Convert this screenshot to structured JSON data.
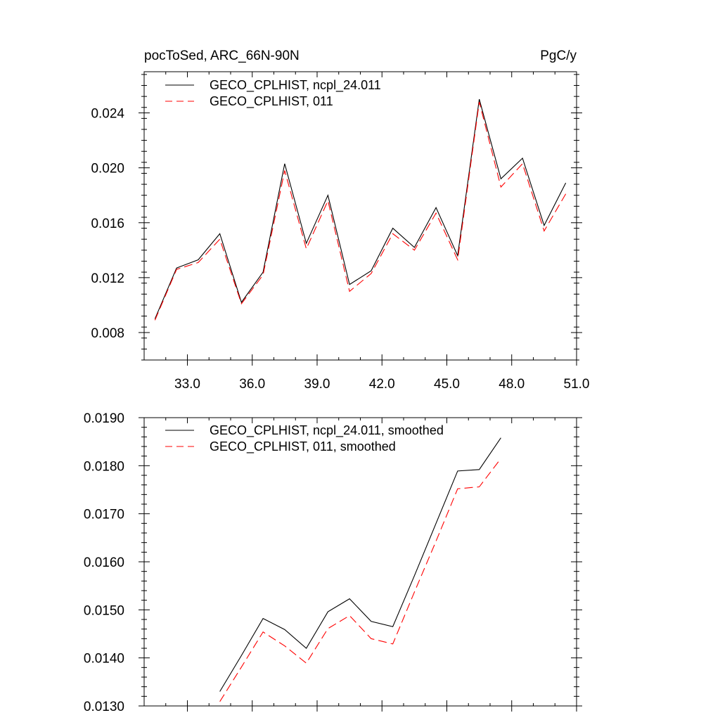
{
  "chart_data": [
    {
      "type": "line",
      "title_left": "pocToSed, ARC_66N-90N",
      "title_right": "PgC/y",
      "xlim": [
        31,
        51
      ],
      "ylim": [
        0.006,
        0.027
      ],
      "xticks": [
        33.0,
        36.0,
        39.0,
        42.0,
        45.0,
        48.0,
        51.0
      ],
      "xtick_labels": [
        "33.0",
        "36.0",
        "39.0",
        "42.0",
        "45.0",
        "48.0",
        "51.0"
      ],
      "yticks": [
        0.008,
        0.012,
        0.016,
        0.02,
        0.024
      ],
      "ytick_labels": [
        "0.008",
        "0.012",
        "0.016",
        "0.020",
        "0.024"
      ],
      "legend_position": "top-left",
      "grid": false,
      "x": [
        31.5,
        32.5,
        33.5,
        34.5,
        35.5,
        36.5,
        37.5,
        38.5,
        39.5,
        40.5,
        41.5,
        42.5,
        43.5,
        44.5,
        45.5,
        46.5,
        47.5,
        48.5,
        49.5,
        50.5
      ],
      "series": [
        {
          "name": "GECO_CPLHIST, ncpl_24.011",
          "color": "#000000",
          "dashed": false,
          "values": [
            0.009,
            0.0127,
            0.0133,
            0.0152,
            0.0102,
            0.0124,
            0.0203,
            0.0145,
            0.018,
            0.0115,
            0.0125,
            0.0156,
            0.0142,
            0.0171,
            0.0136,
            0.025,
            0.0192,
            0.0207,
            0.0158,
            0.0189
          ]
        },
        {
          "name": "GECO_CPLHIST, 011",
          "color": "#ff0000",
          "dashed": true,
          "values": [
            0.0089,
            0.0126,
            0.0131,
            0.0148,
            0.0101,
            0.0122,
            0.0198,
            0.0141,
            0.0176,
            0.011,
            0.0123,
            0.0152,
            0.014,
            0.0167,
            0.0133,
            0.0248,
            0.0186,
            0.0203,
            0.0154,
            0.0181
          ]
        }
      ]
    },
    {
      "type": "line",
      "xlim": [
        31,
        51
      ],
      "ylim": [
        0.013,
        0.019
      ],
      "xticks": [
        33.0,
        36.0,
        39.0,
        42.0,
        45.0,
        48.0,
        51.0
      ],
      "yticks": [
        0.013,
        0.014,
        0.015,
        0.016,
        0.017,
        0.018,
        0.019
      ],
      "ytick_labels": [
        "0.0130",
        "0.0140",
        "0.0150",
        "0.0160",
        "0.0170",
        "0.0180",
        "0.0190"
      ],
      "legend_position": "top-left",
      "grid": false,
      "x": [
        34.5,
        35.5,
        36.5,
        37.5,
        38.5,
        39.5,
        40.5,
        41.5,
        42.5,
        43.5,
        44.5,
        45.5,
        46.5,
        47.5
      ],
      "series": [
        {
          "name": "GECO_CPLHIST, ncpl_24.011, smoothed",
          "color": "#000000",
          "dashed": false,
          "values": [
            0.0133,
            0.01405,
            0.01482,
            0.01459,
            0.0142,
            0.01496,
            0.01523,
            0.01476,
            0.01465,
            0.01571,
            0.0168,
            0.01789,
            0.01792,
            0.01858
          ]
        },
        {
          "name": "GECO_CPLHIST, 011, smoothed",
          "color": "#ff0000",
          "dashed": true,
          "values": [
            0.01309,
            0.01381,
            0.01454,
            0.01425,
            0.01389,
            0.01461,
            0.01488,
            0.0144,
            0.01429,
            0.01537,
            0.01643,
            0.01752,
            0.01756,
            0.01815
          ]
        }
      ]
    }
  ]
}
